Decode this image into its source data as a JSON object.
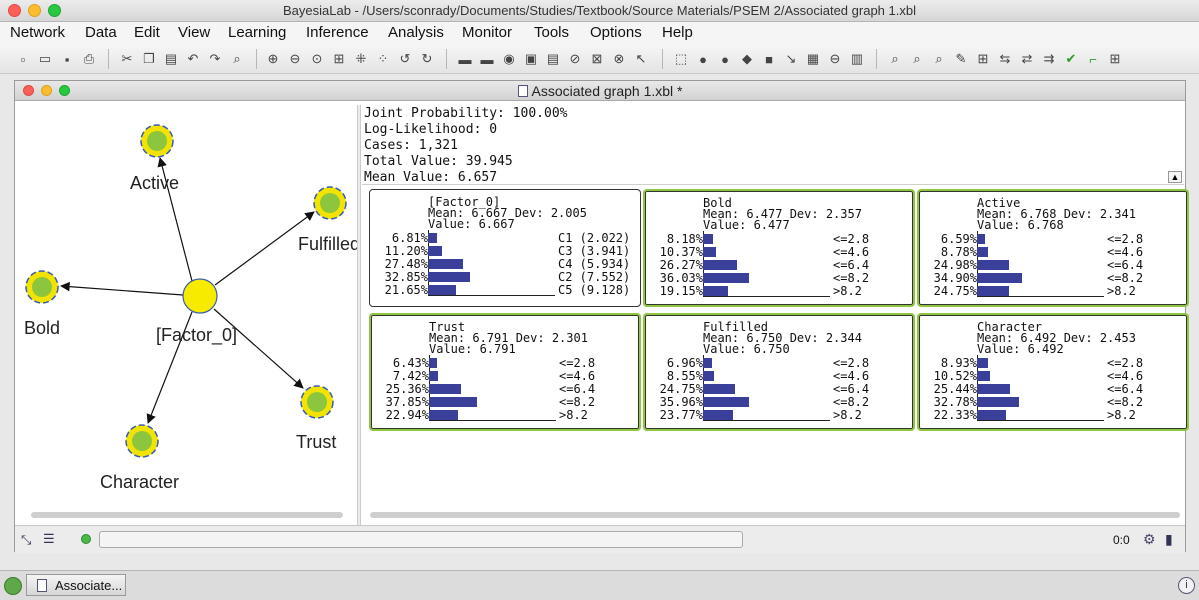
{
  "app": {
    "window_title": "BayesiaLab - /Users/sconrady/Documents/Studies/Textbook/Source Materials/PSEM 2/Associated graph 1.xbl"
  },
  "menu": [
    "Network",
    "Data",
    "Edit",
    "View",
    "Learning",
    "Inference",
    "Analysis",
    "Monitor",
    "Tools",
    "Options",
    "Help"
  ],
  "inner_window": {
    "title": "Associated graph 1.xbl *"
  },
  "graph": {
    "nodes": [
      {
        "id": "active",
        "label": "Active"
      },
      {
        "id": "fulfilled",
        "label": "Fulfilled"
      },
      {
        "id": "bold",
        "label": "Bold"
      },
      {
        "id": "factor0",
        "label": "[Factor_0]"
      },
      {
        "id": "trust",
        "label": "Trust"
      },
      {
        "id": "character",
        "label": "Character"
      }
    ]
  },
  "summary": {
    "joint_probability": "Joint Probability: 100.00%",
    "log_likelihood": "Log-Likelihood: 0",
    "cases": "Cases: 1,321",
    "total_value": "Total Value: 39.945",
    "mean_value": "Mean Value: 6.657"
  },
  "monitors": [
    {
      "name": "[Factor_0]",
      "mean_dev": "Mean: 6.667 Dev: 2.005",
      "value": "Value: 6.667",
      "highlight": false,
      "rows": [
        {
          "pct": "6.81%",
          "v": 6.81,
          "label": "C1 (2.022)"
        },
        {
          "pct": "11.20%",
          "v": 11.2,
          "label": "C3 (3.941)"
        },
        {
          "pct": "27.48%",
          "v": 27.48,
          "label": "C4 (5.934)"
        },
        {
          "pct": "32.85%",
          "v": 32.85,
          "label": "C2 (7.552)"
        },
        {
          "pct": "21.65%",
          "v": 21.65,
          "label": "C5 (9.128)"
        }
      ]
    },
    {
      "name": "Bold",
      "mean_dev": "Mean: 6.477 Dev: 2.357",
      "value": "Value: 6.477",
      "highlight": true,
      "rows": [
        {
          "pct": "8.18%",
          "v": 8.18,
          "label": "<=2.8"
        },
        {
          "pct": "10.37%",
          "v": 10.37,
          "label": "<=4.6"
        },
        {
          "pct": "26.27%",
          "v": 26.27,
          "label": "<=6.4"
        },
        {
          "pct": "36.03%",
          "v": 36.03,
          "label": "<=8.2"
        },
        {
          "pct": "19.15%",
          "v": 19.15,
          "label": ">8.2"
        }
      ]
    },
    {
      "name": "Active",
      "mean_dev": "Mean: 6.768 Dev: 2.341",
      "value": "Value: 6.768",
      "highlight": true,
      "rows": [
        {
          "pct": "6.59%",
          "v": 6.59,
          "label": "<=2.8"
        },
        {
          "pct": "8.78%",
          "v": 8.78,
          "label": "<=4.6"
        },
        {
          "pct": "24.98%",
          "v": 24.98,
          "label": "<=6.4"
        },
        {
          "pct": "34.90%",
          "v": 34.9,
          "label": "<=8.2"
        },
        {
          "pct": "24.75%",
          "v": 24.75,
          "label": ">8.2"
        }
      ]
    },
    {
      "name": "Trust",
      "mean_dev": "Mean: 6.791 Dev: 2.301",
      "value": "Value: 6.791",
      "highlight": true,
      "rows": [
        {
          "pct": "6.43%",
          "v": 6.43,
          "label": "<=2.8"
        },
        {
          "pct": "7.42%",
          "v": 7.42,
          "label": "<=4.6"
        },
        {
          "pct": "25.36%",
          "v": 25.36,
          "label": "<=6.4"
        },
        {
          "pct": "37.85%",
          "v": 37.85,
          "label": "<=8.2"
        },
        {
          "pct": "22.94%",
          "v": 22.94,
          "label": ">8.2"
        }
      ]
    },
    {
      "name": "Fulfilled",
      "mean_dev": "Mean: 6.750 Dev: 2.344",
      "value": "Value: 6.750",
      "highlight": true,
      "rows": [
        {
          "pct": "6.96%",
          "v": 6.96,
          "label": "<=2.8"
        },
        {
          "pct": "8.55%",
          "v": 8.55,
          "label": "<=4.6"
        },
        {
          "pct": "24.75%",
          "v": 24.75,
          "label": "<=6.4"
        },
        {
          "pct": "35.96%",
          "v": 35.96,
          "label": "<=8.2"
        },
        {
          "pct": "23.77%",
          "v": 23.77,
          "label": ">8.2"
        }
      ]
    },
    {
      "name": "Character",
      "mean_dev": "Mean: 6.492 Dev: 2.453",
      "value": "Value: 6.492",
      "highlight": true,
      "rows": [
        {
          "pct": "8.93%",
          "v": 8.93,
          "label": "<=2.8"
        },
        {
          "pct": "10.52%",
          "v": 10.52,
          "label": "<=4.6"
        },
        {
          "pct": "25.44%",
          "v": 25.44,
          "label": "<=6.4"
        },
        {
          "pct": "32.78%",
          "v": 32.78,
          "label": "<=8.2"
        },
        {
          "pct": "22.33%",
          "v": 22.33,
          "label": ">8.2"
        }
      ]
    }
  ],
  "statusbar": {
    "ratio": "0:0"
  },
  "taskbar": {
    "item_label": "Associate..."
  }
}
